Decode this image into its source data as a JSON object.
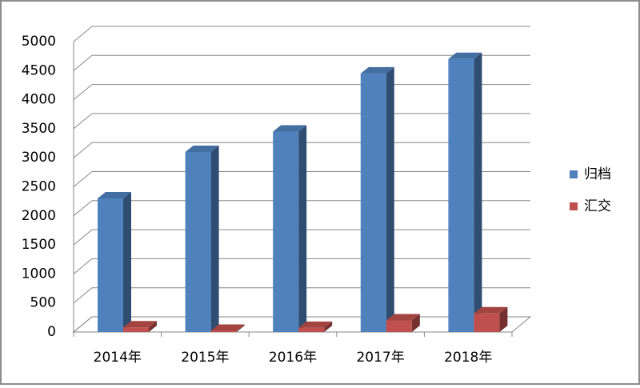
{
  "chart_data": {
    "type": "bar3d",
    "categories": [
      "2014年",
      "2015年",
      "2016年",
      "2017年",
      "2018年"
    ],
    "series": [
      {
        "name": "归档",
        "color": "#4f81bd",
        "values": [
          2300,
          3100,
          3450,
          4450,
          4700
        ]
      },
      {
        "name": "汇交",
        "color": "#c0504d",
        "values": [
          80,
          20,
          70,
          200,
          320
        ]
      }
    ],
    "ylim": [
      0,
      5000
    ],
    "yticks": [
      0,
      500,
      1000,
      1500,
      2000,
      2500,
      3000,
      3500,
      4000,
      4500,
      5000
    ],
    "grid": true,
    "legend": "right"
  }
}
